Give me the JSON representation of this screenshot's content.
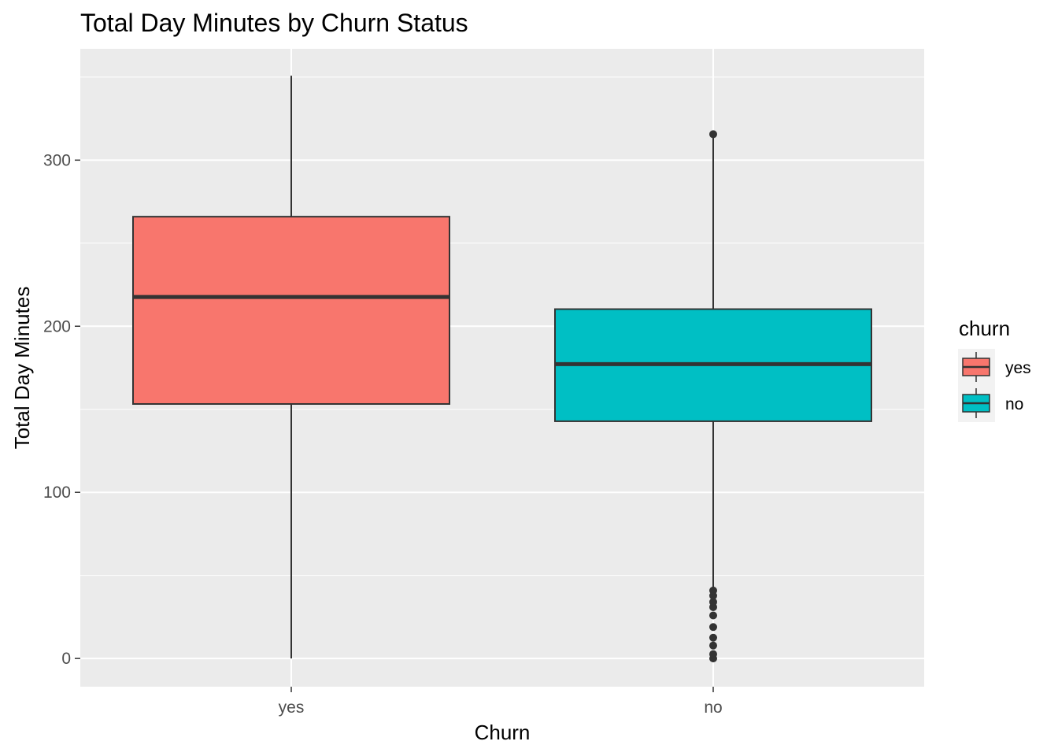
{
  "chart_data": {
    "type": "boxplot",
    "title": "Total Day Minutes by Churn Status",
    "xlabel": "Churn",
    "ylabel": "Total Day Minutes",
    "categories": [
      "yes",
      "no"
    ],
    "ylim": [
      -17,
      367
    ],
    "yticks": [
      0,
      100,
      200,
      300
    ],
    "grid": true,
    "legend": {
      "title": "churn",
      "position": "right",
      "items": [
        {
          "label": "yes",
          "color": "#F8766D"
        },
        {
          "label": "no",
          "color": "#00BFC4"
        }
      ]
    },
    "series": [
      {
        "category": "yes",
        "color": "#F8766D",
        "min": 0,
        "q1": 153.2,
        "median": 217.6,
        "q3": 265.95,
        "max": 350.8,
        "outliers": []
      },
      {
        "category": "no",
        "color": "#00BFC4",
        "min": 41.5,
        "q1": 142.8,
        "median": 177.2,
        "q3": 210.3,
        "max": 315.6,
        "outliers": [
          0,
          2.6,
          7.8,
          12.5,
          18.9,
          25.9,
          30.9,
          34.0,
          37.8,
          40.9,
          315.6
        ]
      }
    ]
  }
}
